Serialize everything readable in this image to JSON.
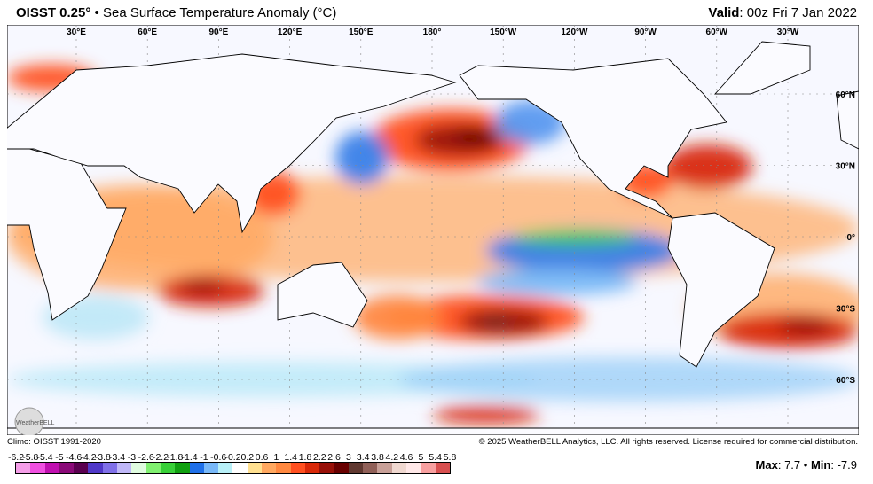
{
  "header": {
    "product": "OISST 0.25°",
    "separator": "•",
    "subtitle": "Sea Surface Temperature Anomaly (°C)",
    "valid_label": "Valid",
    "valid_value": ": 00z Fri 7 Jan 2022"
  },
  "map": {
    "lon_labels": [
      "30°E",
      "60°E",
      "90°E",
      "120°E",
      "150°E",
      "180°",
      "150°W",
      "120°W",
      "90°W",
      "60°W",
      "30°W"
    ],
    "lat_labels": [
      "60°N",
      "30°N",
      "0°",
      "30°S",
      "60°S"
    ],
    "logo_text": "WeatherBELL"
  },
  "footer": {
    "climo": "Climo: OISST 1991-2020",
    "copyright": "© 2025 WeatherBELL Analytics, LLC. All rights reserved. License required for commercial distribution."
  },
  "colorbar": {
    "labels": [
      "-6.2",
      "-5.8",
      "-5.4",
      "-5",
      "-4.6",
      "-4.2",
      "-3.8",
      "-3.4",
      "-3",
      "-2.6",
      "-2.2",
      "-1.8",
      "-1.4",
      "-1",
      "-0.6",
      "-0.2",
      "0.2",
      "0.6",
      "1",
      "1.4",
      "1.8",
      "2.2",
      "2.6",
      "3",
      "3.4",
      "3.8",
      "4.2",
      "4.6",
      "5",
      "5.4",
      "5.8"
    ],
    "colors": [
      "#f59ee8",
      "#f050e0",
      "#c010b0",
      "#8a0a78",
      "#5a0050",
      "#5038c8",
      "#8070e8",
      "#c0b8f8",
      "#e0fce0",
      "#80f070",
      "#38d038",
      "#10a010",
      "#2070e8",
      "#78b8f8",
      "#b8f0f8",
      "#ffffff",
      "#ffe090",
      "#ffa860",
      "#ff8840",
      "#ff5020",
      "#d82808",
      "#981008",
      "#680000",
      "#603830",
      "#906058",
      "#c8a098",
      "#f0d8d0",
      "#ffe8e8",
      "#f8a0a0",
      "#d85050"
    ]
  },
  "stats": {
    "max_label": "Max",
    "max_value": "7.7",
    "sep": "•",
    "min_label": "Min",
    "min_value": "-7.9"
  }
}
